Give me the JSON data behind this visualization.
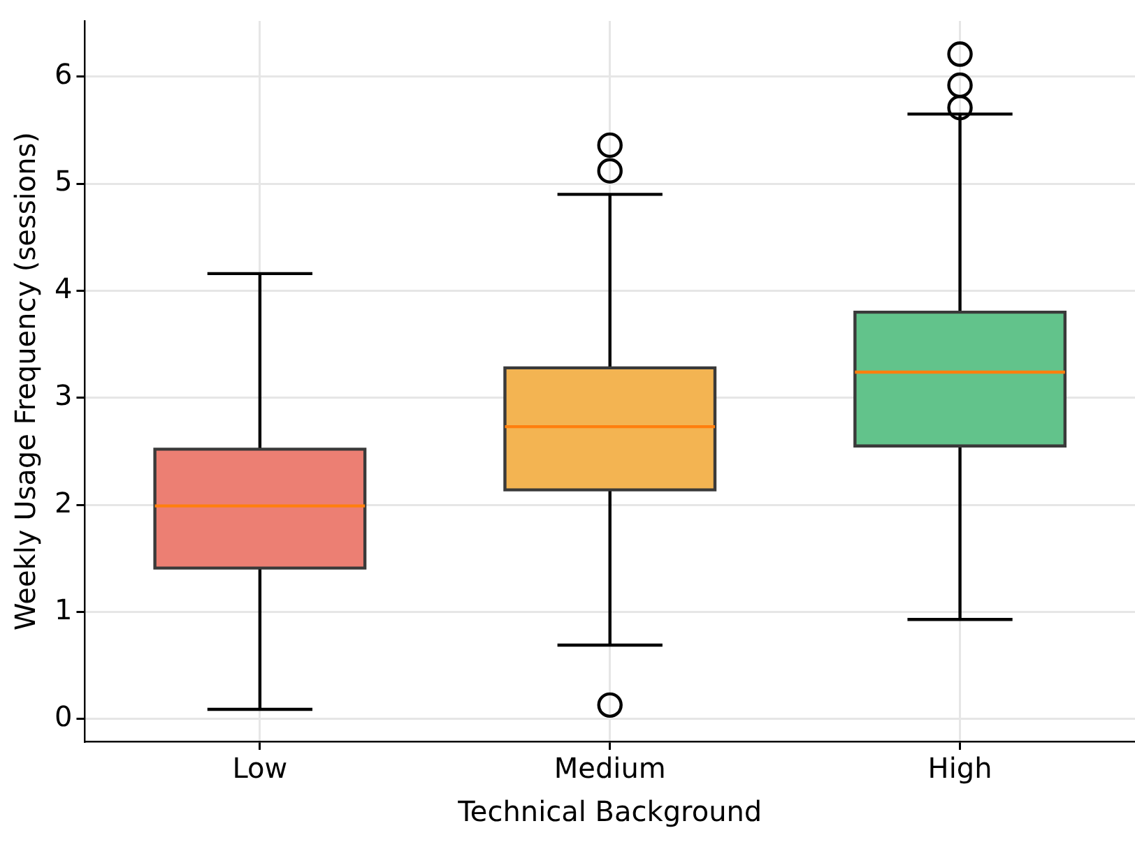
{
  "chart_data": {
    "type": "box",
    "xlabel": "Technical Background",
    "ylabel": "Weekly Usage Frequency (sessions)",
    "categories": [
      "Low",
      "Medium",
      "High"
    ],
    "colors": [
      "#ec7f73",
      "#f3b452",
      "#62c38b"
    ],
    "boxes": [
      {
        "low": 0.09,
        "q1": 1.41,
        "median": 1.99,
        "q3": 2.52,
        "high": 4.16
      },
      {
        "low": 0.69,
        "q1": 2.14,
        "median": 2.73,
        "q3": 3.28,
        "high": 4.9,
        "outliers": [
          5.36,
          5.12,
          0.13
        ]
      },
      {
        "low": 0.93,
        "q1": 2.55,
        "median": 3.24,
        "q3": 3.8,
        "high": 5.65,
        "outliers": [
          6.21,
          5.92,
          5.71
        ]
      }
    ],
    "ylim": [
      -0.21,
      6.52
    ],
    "yticks": [
      0,
      1,
      2,
      3,
      4,
      5,
      6
    ],
    "grid": true
  }
}
